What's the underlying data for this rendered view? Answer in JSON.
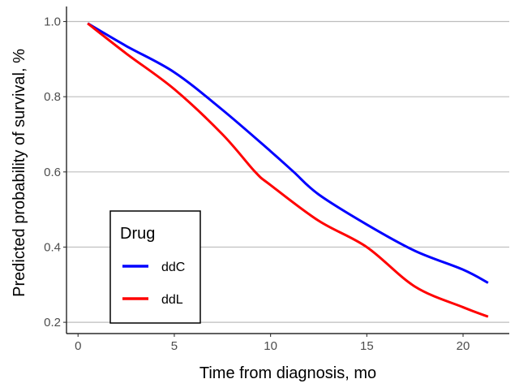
{
  "chart_data": {
    "type": "line",
    "title": "",
    "xlabel": "Time from diagnosis, mo",
    "ylabel": "Predicted probability of survival, %",
    "xlim": [
      -0.6,
      22.4
    ],
    "ylim": [
      0.17,
      1.04
    ],
    "xticks": [
      0,
      5,
      10,
      15,
      20
    ],
    "yticks": [
      0.2,
      0.4,
      0.6,
      0.8,
      1.0
    ],
    "xtick_labels": [
      "0",
      "5",
      "10",
      "15",
      "20"
    ],
    "ytick_labels": [
      "0.2",
      "0.4",
      "0.6",
      "0.8",
      "1.0"
    ],
    "grid": "horizontal major",
    "legend": {
      "title": "Drug",
      "placement": "bottom-left"
    },
    "series": [
      {
        "name": "ddC",
        "color": "#0000FF",
        "x": [
          0.5,
          2.5,
          5,
          7.5,
          10,
          11.2,
          12.5,
          15,
          17.5,
          20,
          21.3
        ],
        "y": [
          0.995,
          0.935,
          0.865,
          0.765,
          0.655,
          0.6,
          0.54,
          0.46,
          0.39,
          0.34,
          0.305
        ]
      },
      {
        "name": "ddL",
        "color": "#FF0000",
        "x": [
          0.5,
          2.5,
          5,
          7.5,
          9.2,
          10,
          12.5,
          15,
          17.5,
          20,
          21.3
        ],
        "y": [
          0.995,
          0.915,
          0.82,
          0.7,
          0.6,
          0.565,
          0.47,
          0.4,
          0.295,
          0.24,
          0.215
        ]
      }
    ]
  }
}
